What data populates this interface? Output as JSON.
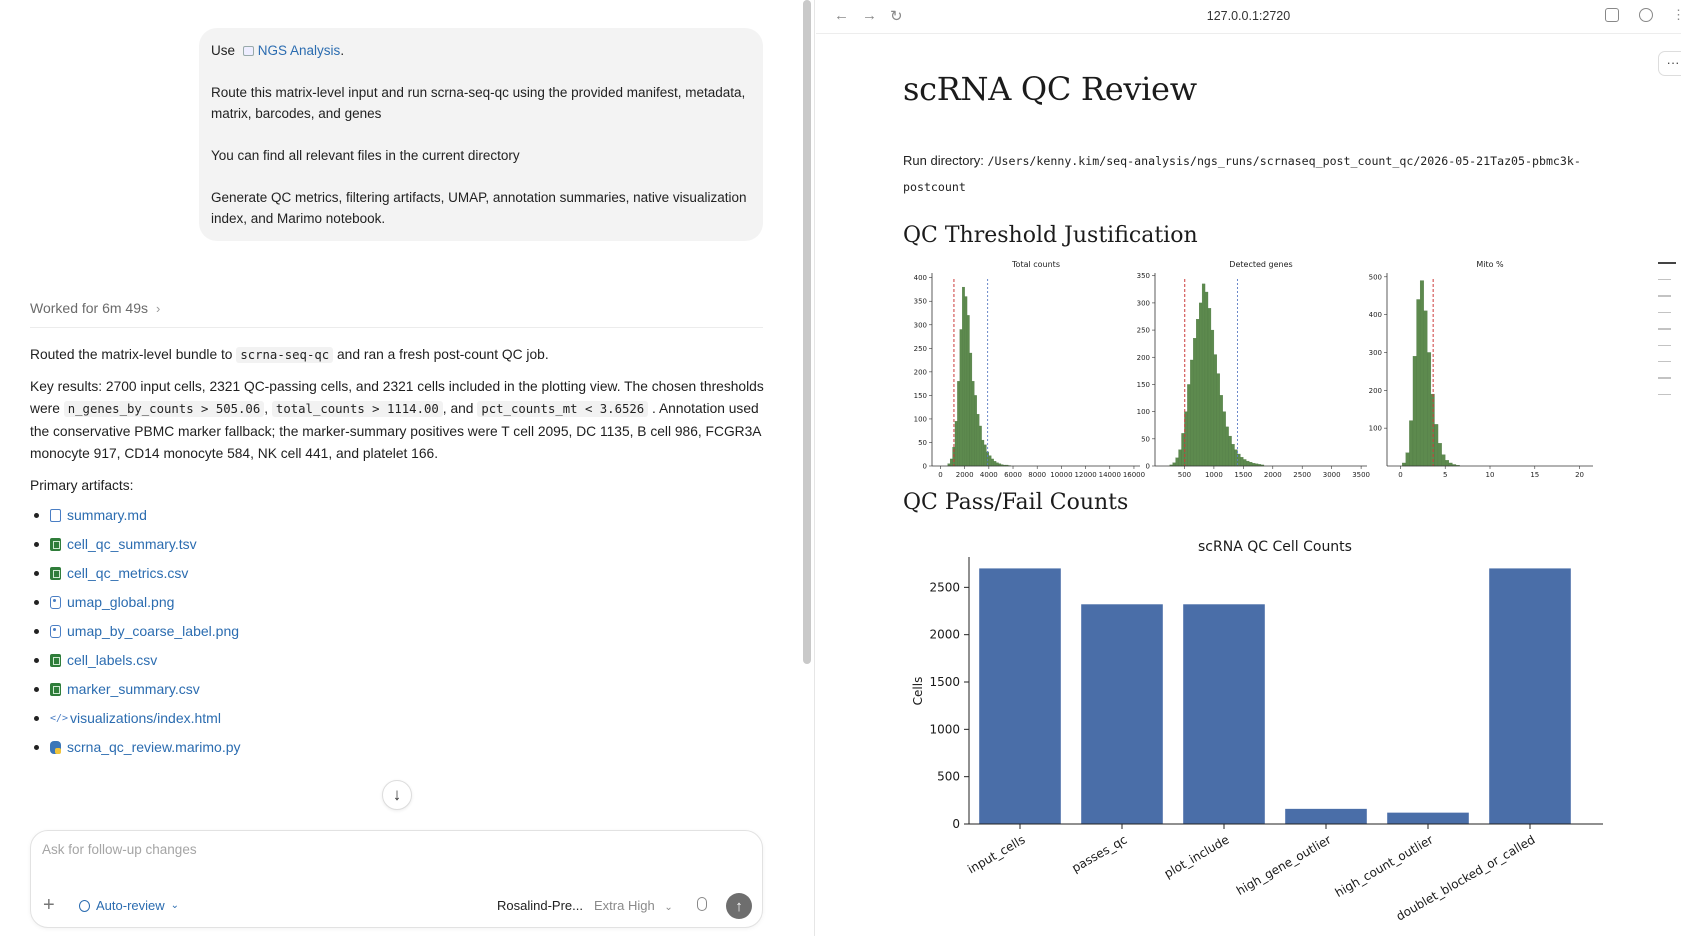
{
  "chat": {
    "user_message": {
      "use_prefix": "Use",
      "skill_name": "NGS Analysis",
      "skill_suffix": ".",
      "paragraphs": [
        "Route this matrix-level input and run scrna-seq-qc using the provided manifest, metadata, matrix, barcodes, and genes",
        "You can find all relevant files in the current directory",
        "Generate QC metrics, filtering artifacts, UMAP, annotation summaries, native visualization index, and Marimo notebook."
      ]
    },
    "worked_label": "Worked for 6m 49s",
    "response": {
      "line1_before": "Routed the matrix-level bundle to",
      "line1_code": "scrna-seq-qc",
      "line1_after": "and ran a fresh post-count QC job.",
      "key_results_before": "Key results: 2700 input cells, 2321 QC-passing cells, and 2321 cells included in the plotting view. The chosen thresholds were",
      "threshold_1": "n_genes_by_counts > 505.06",
      "threshold_2": "total_counts > 1114.00",
      "and_word": ", and",
      "threshold_3": "pct_counts_mt < 3.6526",
      "key_results_after": ". Annotation used the conservative PBMC marker fallback; the marker-summary positives were T cell 2095, DC 1135, B cell 986, FCGR3A monocyte 917, CD14 monocyte 584, NK cell 441, and platelet 166.",
      "artifacts_heading": "Primary artifacts:",
      "artifacts": [
        {
          "name": "summary.md",
          "icon": "doc"
        },
        {
          "name": "cell_qc_summary.tsv",
          "icon": "sheet"
        },
        {
          "name": "cell_qc_metrics.csv",
          "icon": "sheet"
        },
        {
          "name": "umap_global.png",
          "icon": "image"
        },
        {
          "name": "umap_by_coarse_label.png",
          "icon": "image"
        },
        {
          "name": "cell_labels.csv",
          "icon": "sheet"
        },
        {
          "name": "marker_summary.csv",
          "icon": "sheet"
        },
        {
          "name": "visualizations/index.html",
          "icon": "code"
        },
        {
          "name": "scrna_qc_review.marimo.py",
          "icon": "python"
        }
      ]
    },
    "composer": {
      "placeholder": "Ask for follow-up changes",
      "review_mode": "Auto-review",
      "model": "Rosalind-Pre...",
      "effort": "Extra High"
    }
  },
  "browser": {
    "url": "127.0.0.1:2720",
    "page": {
      "title": "scRNA QC Review",
      "run_dir_label": "Run directory:",
      "run_dir_path": "/Users/kenny.kim/seq-analysis/ngs_runs/scrnaseq_post_count_qc/2026-05-21Taz05-pbmc3k-postcount",
      "section_thresholds": "QC Threshold Justification",
      "section_counts": "QC Pass/Fail Counts"
    }
  },
  "chart_data": [
    {
      "type": "bar",
      "title": "Total counts",
      "x_ticks": [
        0,
        2000,
        4000,
        6000,
        8000,
        10000,
        12000,
        14000,
        16000
      ],
      "y_ticks": [
        0,
        50,
        100,
        150,
        200,
        250,
        300,
        350,
        400
      ],
      "xlim": [
        -700,
        16500
      ],
      "ylim": [
        0,
        410
      ],
      "bin_width": 200,
      "bins_x": [
        600,
        800,
        1000,
        1200,
        1400,
        1600,
        1800,
        2000,
        2200,
        2400,
        2600,
        2800,
        3000,
        3200,
        3400,
        3600,
        3800,
        4000,
        4200,
        4400,
        4600,
        4800,
        5000,
        5200,
        5400,
        5600
      ],
      "values": [
        5,
        15,
        40,
        95,
        180,
        290,
        380,
        360,
        320,
        240,
        180,
        150,
        110,
        85,
        55,
        45,
        30,
        22,
        15,
        10,
        7,
        5,
        3,
        2,
        2,
        1
      ],
      "lower_threshold": 1114.0,
      "upper_threshold": 3900,
      "color": "#5d8a4e"
    },
    {
      "type": "bar",
      "title": "Detected genes",
      "x_ticks": [
        500,
        1000,
        1500,
        2000,
        2500,
        3000,
        3500
      ],
      "y_ticks": [
        0,
        50,
        100,
        150,
        200,
        250,
        300,
        350
      ],
      "xlim": [
        0,
        3600
      ],
      "ylim": [
        0,
        355
      ],
      "bin_width": 50,
      "bins_x": [
        250,
        300,
        350,
        400,
        450,
        500,
        550,
        600,
        650,
        700,
        750,
        800,
        850,
        900,
        950,
        1000,
        1050,
        1100,
        1150,
        1200,
        1250,
        1300,
        1350,
        1400,
        1450,
        1500,
        1550,
        1600,
        1650,
        1700,
        1750,
        1800
      ],
      "values": [
        2,
        6,
        15,
        30,
        60,
        100,
        150,
        195,
        235,
        270,
        300,
        335,
        320,
        290,
        250,
        205,
        170,
        130,
        100,
        72,
        55,
        40,
        30,
        22,
        16,
        12,
        9,
        7,
        5,
        4,
        3,
        2
      ],
      "lower_threshold": 505.06,
      "upper_threshold": 1400,
      "color": "#5d8a4e"
    },
    {
      "type": "bar",
      "title": "Mito %",
      "x_ticks": [
        0,
        5,
        10,
        15,
        20
      ],
      "y_ticks": [
        100,
        200,
        300,
        400,
        500
      ],
      "xlim": [
        -1.5,
        21.5
      ],
      "ylim": [
        0,
        510
      ],
      "bin_width": 0.4,
      "bins_x": [
        0.2,
        0.6,
        1.0,
        1.4,
        1.8,
        2.2,
        2.6,
        3.0,
        3.4,
        3.8,
        4.2,
        4.6,
        5.0,
        5.4,
        5.8,
        6.2
      ],
      "values": [
        8,
        35,
        120,
        290,
        440,
        490,
        410,
        300,
        190,
        110,
        60,
        30,
        15,
        8,
        4,
        2
      ],
      "lower_threshold": 3.6526,
      "color": "#5d8a4e"
    },
    {
      "type": "bar",
      "title": "scRNA QC Cell Counts",
      "ylabel": "Cells",
      "categories": [
        "input_cells",
        "passes_qc",
        "plot_include",
        "high_gene_outlier",
        "high_count_outlier",
        "doublet_blocked_or_called"
      ],
      "values": [
        2700,
        2321,
        2321,
        160,
        120,
        2700
      ],
      "y_ticks": [
        0,
        500,
        1000,
        1500,
        2000,
        2500
      ],
      "ylim": [
        0,
        2810
      ],
      "color": "#4a6ea8"
    }
  ]
}
